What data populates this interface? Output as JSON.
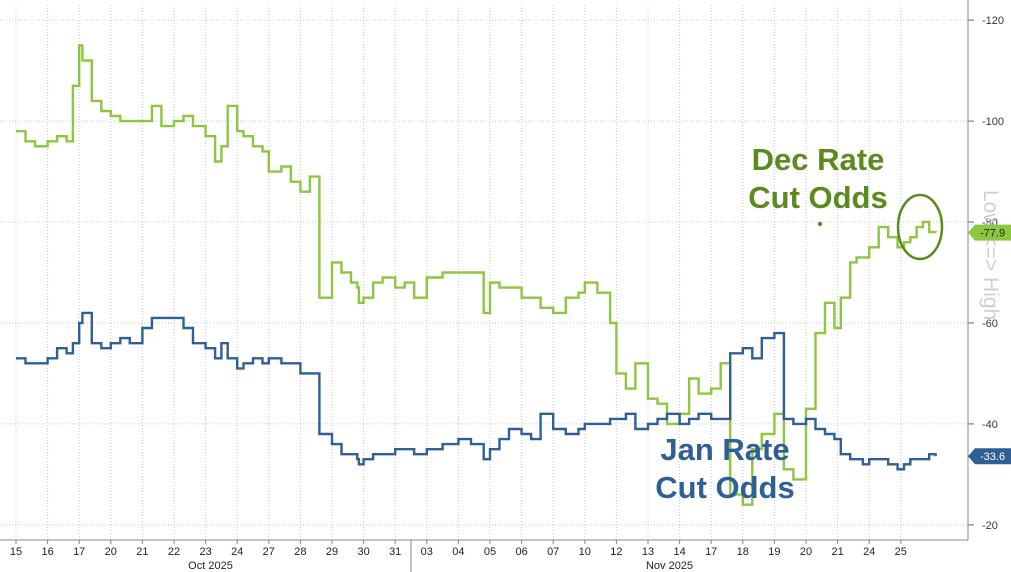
{
  "chart_data": {
    "type": "line",
    "x_tick_labels": [
      "15",
      "16",
      "17",
      "20",
      "21",
      "22",
      "23",
      "24",
      "27",
      "28",
      "29",
      "30",
      "31",
      "03",
      "04",
      "05",
      "06",
      "07",
      "10",
      "12",
      "13",
      "14",
      "17",
      "18",
      "19",
      "20",
      "21",
      "24",
      "25"
    ],
    "x_month_labels": [
      "Oct 2025",
      "Nov 2025"
    ],
    "y_axis_label": "Low <=> High",
    "y_ticks": [
      "-120",
      "-100",
      "-80",
      "-60",
      "-40",
      "-20"
    ],
    "ylim": [
      17,
      123
    ],
    "grid": true,
    "annotations": [
      {
        "text_lines": [
          "Dec Rate",
          "Cut Odds"
        ],
        "series": "dec"
      },
      {
        "text_lines": [
          "Jan Rate",
          "Cut Odds"
        ],
        "series": "jan"
      }
    ],
    "series": [
      {
        "id": "dec",
        "last_label": "-77.9",
        "color": "#8dc63f",
        "x": [
          0,
          0.3,
          0.6,
          1.0,
          1.3,
          1.6,
          1.8,
          2.0,
          2.1,
          2.4,
          2.7,
          3.0,
          3.3,
          3.6,
          4.0,
          4.3,
          4.6,
          5.0,
          5.3,
          5.6,
          6.0,
          6.3,
          6.5,
          6.7,
          7.0,
          7.2,
          7.5,
          7.8,
          8.0,
          8.4,
          8.7,
          9.0,
          9.3,
          9.6,
          10.0,
          10.3,
          10.6,
          10.8,
          10.85,
          11.0,
          11.3,
          11.6,
          12.0,
          12.3,
          12.6,
          13.0,
          13.5,
          14.0,
          14.4,
          14.8,
          15.0,
          15.3,
          15.6,
          16.0,
          16.3,
          16.6,
          17.0,
          17.4,
          17.8,
          18.0,
          18.4,
          18.8,
          19.0,
          19.3,
          19.6,
          20.0,
          20.3,
          20.6,
          21.0,
          21.3,
          21.6,
          22.0,
          22.3,
          22.6,
          23.0,
          23.3,
          23.6,
          24.0,
          24.3,
          24.6,
          25.0,
          25.3,
          25.6,
          25.9,
          26.1,
          26.4,
          26.6,
          26.8,
          27.0,
          27.3,
          27.6,
          27.9,
          28.1,
          28.3,
          28.5,
          28.7,
          28.9,
          29.1
        ],
        "y": [
          98,
          96,
          95,
          96,
          97,
          96,
          107,
          115,
          112,
          104,
          102,
          101,
          100,
          100,
          100,
          103,
          99,
          100,
          101,
          99,
          97,
          92,
          95,
          103,
          98,
          97,
          95,
          94,
          90,
          91,
          88,
          86,
          89,
          65,
          72,
          70,
          68,
          67,
          64,
          65,
          68,
          69,
          67,
          68,
          65,
          69,
          70,
          70,
          70,
          62,
          68,
          67,
          67,
          65,
          65,
          63,
          62,
          65,
          66,
          68,
          66,
          60,
          50,
          47,
          52,
          45,
          44,
          40,
          42,
          49,
          46,
          47,
          52,
          26,
          24,
          35,
          38,
          42,
          31,
          29,
          43,
          58,
          64,
          59,
          65,
          72,
          73,
          73,
          75,
          79,
          77,
          75,
          76,
          77,
          79,
          80,
          78,
          77.9
        ]
      },
      {
        "id": "jan",
        "last_label": "-33.6",
        "color": "#2f5f95",
        "x": [
          0,
          0.3,
          0.6,
          1.0,
          1.3,
          1.6,
          1.8,
          2.0,
          2.1,
          2.4,
          2.7,
          3.0,
          3.3,
          3.6,
          4.0,
          4.3,
          4.6,
          5.0,
          5.3,
          5.6,
          6.0,
          6.3,
          6.5,
          6.7,
          7.0,
          7.2,
          7.5,
          7.8,
          8.0,
          8.4,
          8.7,
          9.0,
          9.3,
          9.6,
          10.0,
          10.3,
          10.6,
          10.8,
          10.85,
          11.0,
          11.3,
          11.6,
          12.0,
          12.3,
          12.6,
          13.0,
          13.5,
          14.0,
          14.4,
          14.8,
          15.0,
          15.3,
          15.6,
          16.0,
          16.3,
          16.6,
          17.0,
          17.4,
          17.8,
          18.0,
          18.4,
          18.8,
          19.0,
          19.3,
          19.6,
          20.0,
          20.3,
          20.6,
          21.0,
          21.3,
          21.6,
          22.0,
          22.3,
          22.6,
          23.0,
          23.3,
          23.6,
          24.0,
          24.3,
          24.6,
          25.0,
          25.3,
          25.6,
          25.9,
          26.1,
          26.4,
          26.6,
          26.8,
          27.0,
          27.3,
          27.6,
          27.9,
          28.1,
          28.3,
          28.5,
          28.7,
          28.9,
          29.1
        ],
        "y": [
          53,
          52,
          52,
          53,
          55,
          54,
          56,
          60,
          62,
          56,
          55,
          56,
          57,
          56,
          59,
          61,
          61,
          61,
          59,
          56,
          55,
          53,
          56,
          53,
          51,
          52,
          53,
          52,
          53,
          52,
          52,
          50,
          50,
          38,
          36,
          34,
          34,
          33,
          32,
          33,
          34,
          34,
          35,
          35,
          34,
          35,
          36,
          37,
          36,
          33,
          35,
          37,
          39,
          38,
          37,
          42,
          39,
          38,
          39,
          40,
          40,
          41,
          41,
          42,
          39,
          40,
          41,
          42,
          40,
          41,
          42,
          41,
          41,
          54,
          55,
          53,
          57,
          58,
          41,
          40,
          41,
          39,
          38,
          37,
          34,
          33,
          33,
          32,
          33,
          33,
          32,
          31,
          32,
          33,
          33,
          33,
          34,
          33.6
        ]
      }
    ]
  }
}
